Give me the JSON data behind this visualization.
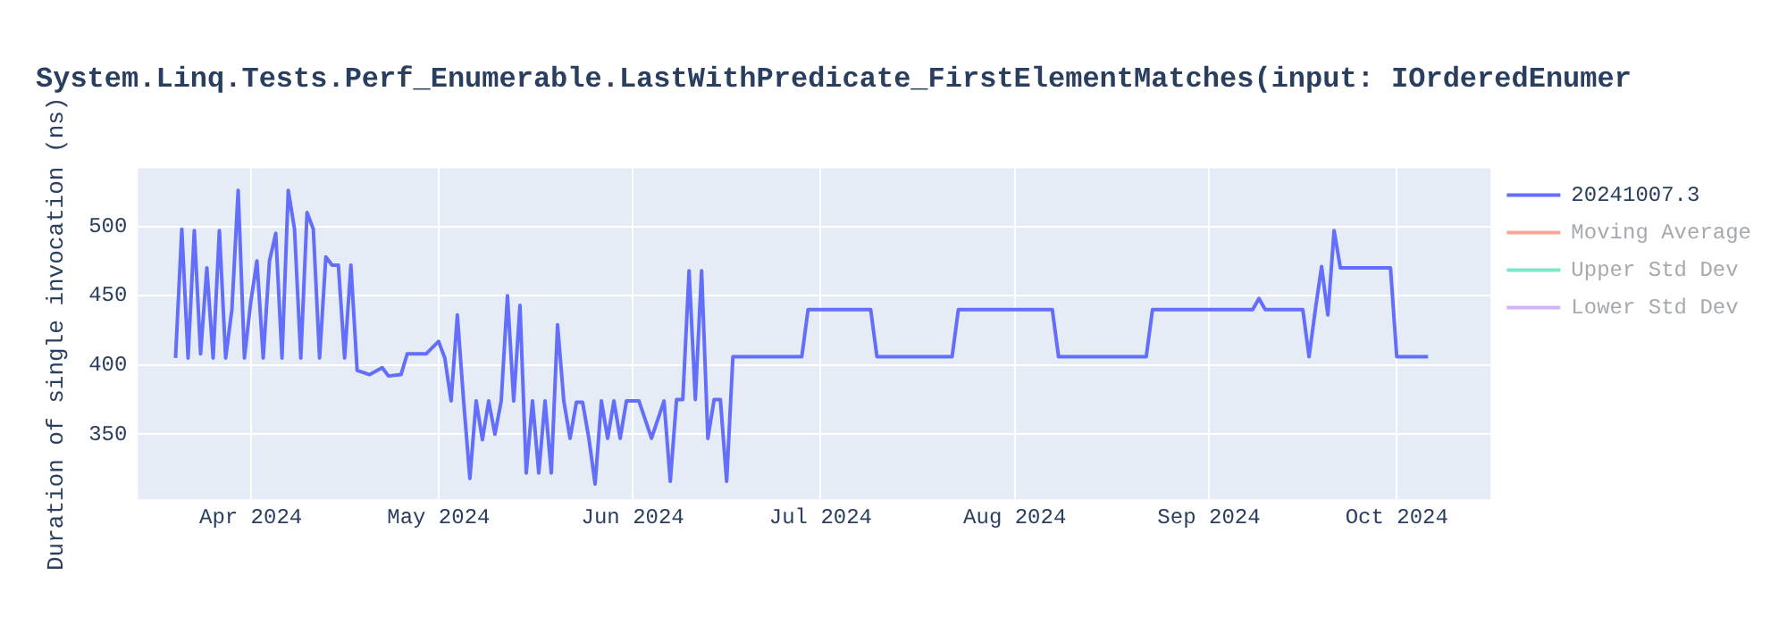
{
  "chart_data": {
    "type": "line",
    "title": "System.Linq.Tests.Perf_Enumerable.LastWithPredicate_FirstElementMatches(input: IOrderedEnumer",
    "ylabel": "Duration of single invocation (ns)",
    "x": [
      "2024-03-20",
      "2024-03-21",
      "2024-03-22",
      "2024-03-23",
      "2024-03-24",
      "2024-03-25",
      "2024-03-26",
      "2024-03-27",
      "2024-03-28",
      "2024-03-29",
      "2024-03-30",
      "2024-03-31",
      "2024-04-01",
      "2024-04-02",
      "2024-04-03",
      "2024-04-04",
      "2024-04-05",
      "2024-04-06",
      "2024-04-07",
      "2024-04-08",
      "2024-04-09",
      "2024-04-10",
      "2024-04-11",
      "2024-04-12",
      "2024-04-13",
      "2024-04-14",
      "2024-04-15",
      "2024-04-16",
      "2024-04-17",
      "2024-04-18",
      "2024-04-20",
      "2024-04-22",
      "2024-04-23",
      "2024-04-25",
      "2024-04-26",
      "2024-04-29",
      "2024-05-01",
      "2024-05-02",
      "2024-05-03",
      "2024-05-04",
      "2024-05-05",
      "2024-05-06",
      "2024-05-07",
      "2024-05-08",
      "2024-05-09",
      "2024-05-10",
      "2024-05-11",
      "2024-05-12",
      "2024-05-13",
      "2024-05-14",
      "2024-05-15",
      "2024-05-16",
      "2024-05-17",
      "2024-05-18",
      "2024-05-19",
      "2024-05-20",
      "2024-05-21",
      "2024-05-22",
      "2024-05-23",
      "2024-05-24",
      "2024-05-25",
      "2024-05-26",
      "2024-05-27",
      "2024-05-28",
      "2024-05-29",
      "2024-05-30",
      "2024-05-31",
      "2024-06-02",
      "2024-06-04",
      "2024-06-06",
      "2024-06-07",
      "2024-06-08",
      "2024-06-09",
      "2024-06-10",
      "2024-06-11",
      "2024-06-12",
      "2024-06-13",
      "2024-06-14",
      "2024-06-15",
      "2024-06-16",
      "2024-06-17",
      "2024-06-28",
      "2024-06-29",
      "2024-07-09",
      "2024-07-10",
      "2024-07-22",
      "2024-07-23",
      "2024-08-07",
      "2024-08-08",
      "2024-08-22",
      "2024-08-23",
      "2024-09-08",
      "2024-09-09",
      "2024-09-10",
      "2024-09-16",
      "2024-09-17",
      "2024-09-18",
      "2024-09-19",
      "2024-09-20",
      "2024-09-21",
      "2024-09-22",
      "2024-09-30",
      "2024-10-01",
      "2024-10-06"
    ],
    "series": [
      {
        "name": "20241007.3",
        "color": "#636efa",
        "values": [
          405,
          498,
          405,
          497,
          408,
          470,
          405,
          497,
          405,
          440,
          526,
          405,
          445,
          475,
          405,
          475,
          495,
          405,
          526,
          498,
          405,
          510,
          498,
          405,
          478,
          472,
          472,
          405,
          472,
          396,
          393,
          398,
          392,
          393,
          408,
          408,
          417,
          405,
          374,
          436,
          374,
          318,
          374,
          346,
          374,
          350,
          374,
          450,
          374,
          443,
          322,
          374,
          322,
          374,
          322,
          429,
          374,
          347,
          373,
          373,
          347,
          314,
          374,
          347,
          374,
          347,
          374,
          374,
          347,
          374,
          316,
          375,
          375,
          468,
          375,
          468,
          347,
          375,
          375,
          316,
          406,
          406,
          440,
          440,
          406,
          406,
          440,
          440,
          406,
          406,
          440,
          440,
          448,
          440,
          440,
          406,
          440,
          471,
          436,
          497,
          470,
          470,
          406,
          406
        ]
      },
      {
        "name": "Moving Average",
        "color": "#f7a798",
        "values": [
          null,
          null,
          null,
          null,
          null,
          null,
          null,
          null,
          null,
          null,
          null,
          null,
          null,
          null,
          null,
          null,
          null,
          null,
          null,
          null,
          null,
          null,
          null,
          null,
          null,
          null,
          null,
          null,
          null,
          null,
          null,
          null,
          null,
          null,
          null,
          null,
          null,
          null,
          null,
          null,
          null,
          null,
          null,
          null,
          null,
          null,
          null,
          null,
          null,
          null,
          null,
          null,
          null,
          null,
          null,
          null,
          null,
          null,
          null,
          null,
          null,
          null,
          null,
          null,
          null,
          null,
          null,
          null,
          null,
          null,
          null,
          null,
          null,
          null,
          null,
          null,
          null,
          null,
          null,
          null,
          null,
          null,
          null,
          null,
          null,
          null,
          null,
          null,
          null,
          null,
          null,
          null,
          null,
          null,
          null,
          null,
          null,
          null,
          null,
          null,
          null,
          null,
          null,
          null
        ]
      },
      {
        "name": "Upper Std Dev",
        "color": "#7fe5ca",
        "values": [
          null,
          null,
          null,
          null,
          null,
          null,
          null,
          null,
          null,
          null,
          null,
          null,
          null,
          null,
          null,
          null,
          null,
          null,
          null,
          null,
          null,
          null,
          null,
          null,
          null,
          null,
          null,
          null,
          null,
          null,
          null,
          null,
          null,
          null,
          null,
          null,
          null,
          null,
          null,
          null,
          null,
          null,
          null,
          null,
          null,
          null,
          null,
          null,
          null,
          null,
          null,
          null,
          null,
          null,
          null,
          null,
          null,
          null,
          null,
          null,
          null,
          null,
          null,
          null,
          null,
          null,
          null,
          null,
          null,
          null,
          null,
          null,
          null,
          null,
          null,
          null,
          null,
          null,
          null,
          null,
          null,
          null,
          null,
          null,
          null,
          null,
          null,
          null,
          null,
          null,
          null,
          null,
          null,
          null,
          null,
          null,
          null,
          null,
          null,
          null,
          null,
          null,
          null,
          null
        ]
      },
      {
        "name": "Lower Std Dev",
        "color": "#d5b1fc",
        "values": [
          null,
          null,
          null,
          null,
          null,
          null,
          null,
          null,
          null,
          null,
          null,
          null,
          null,
          null,
          null,
          null,
          null,
          null,
          null,
          null,
          null,
          null,
          null,
          null,
          null,
          null,
          null,
          null,
          null,
          null,
          null,
          null,
          null,
          null,
          null,
          null,
          null,
          null,
          null,
          null,
          null,
          null,
          null,
          null,
          null,
          null,
          null,
          null,
          null,
          null,
          null,
          null,
          null,
          null,
          null,
          null,
          null,
          null,
          null,
          null,
          null,
          null,
          null,
          null,
          null,
          null,
          null,
          null,
          null,
          null,
          null,
          null,
          null,
          null,
          null,
          null,
          null,
          null,
          null,
          null,
          null,
          null,
          null,
          null,
          null,
          null,
          null,
          null,
          null,
          null,
          null,
          null,
          null,
          null,
          null,
          null,
          null,
          null,
          null,
          null,
          null,
          null,
          null,
          null
        ]
      }
    ],
    "xlim": [
      "2024-03-14",
      "2024-10-16"
    ],
    "xticks": [
      {
        "value": "2024-04-01",
        "label": "Apr 2024"
      },
      {
        "value": "2024-05-01",
        "label": "May 2024"
      },
      {
        "value": "2024-06-01",
        "label": "Jun 2024"
      },
      {
        "value": "2024-07-01",
        "label": "Jul 2024"
      },
      {
        "value": "2024-08-01",
        "label": "Aug 2024"
      },
      {
        "value": "2024-09-01",
        "label": "Sep 2024"
      },
      {
        "value": "2024-10-01",
        "label": "Oct 2024"
      }
    ],
    "ylim": [
      303,
      542
    ],
    "yticks": [
      350,
      400,
      450,
      500
    ],
    "grid": true,
    "legend": "right",
    "marker": "none",
    "line_style": "solid"
  }
}
